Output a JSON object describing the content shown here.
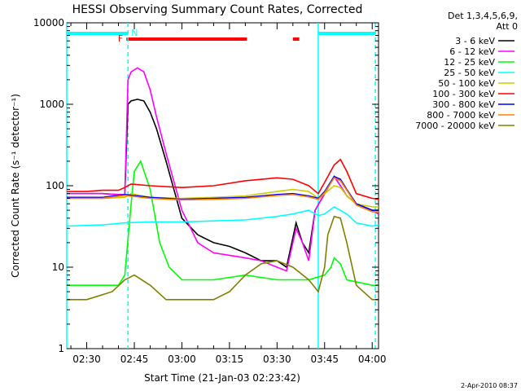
{
  "chart_data": {
    "type": "line",
    "title": "HESSI Observing Summary Count Rates, Corrected",
    "xlabel": "Start Time (21-Jan-03 02:23:42)",
    "ylabel": "Corrected Count Rate (s⁻¹ detector⁻¹)",
    "y_scale": "log",
    "ylim": [
      1,
      10000
    ],
    "xlim": [
      "02:23:42",
      "04:02:00"
    ],
    "x_ticks": [
      "02:30",
      "02:45",
      "03:00",
      "03:15",
      "03:30",
      "03:45",
      "04:00"
    ],
    "y_ticks": [
      "1",
      "10",
      "100",
      "1000",
      "10000"
    ],
    "legend_header": [
      "Det 1,3,4,5,6,9,",
      "Att 0"
    ],
    "legend_position": "top-right",
    "timestamp": "2-Apr-2010 08:37",
    "flags": [
      {
        "label": "F",
        "color": "#ff0000",
        "start": "02:42:30",
        "end": "03:20:30"
      },
      {
        "label": "",
        "color": "#ff0000",
        "start": "03:35:00",
        "end": "03:37:00"
      },
      {
        "label": "N",
        "color": "#00ffff",
        "start": "02:23:42",
        "end": "02:43:00"
      },
      {
        "label": "",
        "color": "#00ffff",
        "start": "03:43:00",
        "end": "04:01:00"
      }
    ],
    "markers": [
      {
        "time": "02:23:42",
        "color": "#00ffff",
        "style": "solid"
      },
      {
        "time": "02:43:00",
        "color": "#00ffff",
        "style": "dashed"
      },
      {
        "time": "03:43:00",
        "color": "#00ffff",
        "style": "solid"
      },
      {
        "time": "04:01:00",
        "color": "#00ffff",
        "style": "dashed"
      }
    ],
    "series": [
      {
        "name": "3 - 6 keV",
        "color": "#000000",
        "x": [
          "02:23:42",
          "02:30",
          "02:35",
          "02:40",
          "02:42",
          "02:43",
          "02:44",
          "02:46",
          "02:48",
          "02:50",
          "02:52",
          "02:55",
          "03:00",
          "03:05",
          "03:10",
          "03:15",
          "03:20",
          "03:25",
          "03:30",
          "03:33",
          "03:36",
          "03:38",
          "03:40",
          "03:42",
          "03:45",
          "03:48",
          "03:50",
          "03:52",
          "03:55",
          "04:00",
          "04:02"
        ],
        "values": [
          80,
          80,
          80,
          78,
          78,
          1000,
          1100,
          1150,
          1100,
          800,
          500,
          200,
          40,
          25,
          20,
          18,
          15,
          12,
          12,
          10,
          35,
          20,
          15,
          50,
          80,
          130,
          100,
          75,
          60,
          50,
          45
        ]
      },
      {
        "name": "6 - 12 keV",
        "color": "#ff00ff",
        "x": [
          "02:23:42",
          "02:30",
          "02:35",
          "02:40",
          "02:42",
          "02:43",
          "02:44",
          "02:46",
          "02:48",
          "02:50",
          "02:52",
          "02:55",
          "03:00",
          "03:05",
          "03:10",
          "03:15",
          "03:20",
          "03:25",
          "03:30",
          "03:33",
          "03:36",
          "03:38",
          "03:40",
          "03:42",
          "03:45",
          "03:48",
          "03:50",
          "03:52",
          "03:55",
          "04:00",
          "04:02"
        ],
        "values": [
          80,
          80,
          80,
          78,
          78,
          2000,
          2500,
          2800,
          2500,
          1500,
          700,
          250,
          50,
          20,
          15,
          14,
          13,
          12,
          10,
          9,
          30,
          20,
          12,
          50,
          80,
          130,
          100,
          75,
          60,
          50,
          45
        ]
      },
      {
        "name": "12 - 25 keV",
        "color": "#00ff00",
        "x": [
          "02:23:42",
          "02:30",
          "02:40",
          "02:42",
          "02:44",
          "02:45",
          "02:47",
          "02:50",
          "02:53",
          "02:56",
          "03:00",
          "03:10",
          "03:20",
          "03:30",
          "03:40",
          "03:45",
          "03:47",
          "03:48",
          "03:50",
          "03:52",
          "04:00",
          "04:02"
        ],
        "values": [
          6,
          6,
          6,
          8,
          60,
          150,
          200,
          90,
          20,
          10,
          7,
          7,
          8,
          7,
          7,
          8,
          10,
          13,
          11,
          7,
          6,
          6
        ]
      },
      {
        "name": "25 - 50 keV",
        "color": "#00ffff",
        "x": [
          "02:23:42",
          "02:35",
          "02:42",
          "02:50",
          "03:00",
          "03:10",
          "03:20",
          "03:30",
          "03:35",
          "03:40",
          "03:43",
          "03:45",
          "03:48",
          "03:52",
          "03:55",
          "04:00",
          "04:02"
        ],
        "values": [
          32,
          33,
          35,
          36,
          36,
          37,
          38,
          42,
          45,
          50,
          43,
          45,
          55,
          45,
          35,
          32,
          33
        ]
      },
      {
        "name": "50 - 100 keV",
        "color": "#cccc00",
        "x": [
          "02:23:42",
          "02:35",
          "02:42",
          "02:44",
          "02:50",
          "03:00",
          "03:10",
          "03:20",
          "03:30",
          "03:35",
          "03:40",
          "03:43",
          "03:45",
          "03:48",
          "03:50",
          "03:52",
          "03:55",
          "04:00",
          "04:02"
        ],
        "values": [
          70,
          70,
          72,
          80,
          72,
          70,
          72,
          75,
          85,
          90,
          85,
          70,
          80,
          100,
          95,
          75,
          60,
          55,
          55
        ]
      },
      {
        "name": "100 - 300 keV",
        "color": "#ff0000",
        "x": [
          "02:23:42",
          "02:30",
          "02:35",
          "02:40",
          "02:42",
          "02:44",
          "02:50",
          "03:00",
          "03:10",
          "03:20",
          "03:30",
          "03:35",
          "03:40",
          "03:43",
          "03:45",
          "03:48",
          "03:50",
          "03:52",
          "03:55",
          "04:00",
          "04:02"
        ],
        "values": [
          85,
          85,
          88,
          88,
          95,
          105,
          100,
          95,
          100,
          115,
          125,
          120,
          100,
          80,
          110,
          180,
          210,
          150,
          80,
          70,
          68
        ]
      },
      {
        "name": "300 - 800 keV",
        "color": "#0000ff",
        "x": [
          "02:23:42",
          "02:35",
          "02:42",
          "02:50",
          "03:00",
          "03:10",
          "03:20",
          "03:30",
          "03:35",
          "03:40",
          "03:43",
          "03:45",
          "03:48",
          "03:50",
          "03:52",
          "03:55",
          "04:00",
          "04:02"
        ],
        "values": [
          72,
          72,
          78,
          72,
          68,
          70,
          72,
          78,
          80,
          75,
          70,
          85,
          130,
          120,
          90,
          60,
          50,
          50
        ]
      },
      {
        "name": "800 - 7000 keV",
        "color": "#ff8000",
        "x": [
          "02:23:42",
          "02:35",
          "02:42",
          "02:50",
          "03:00",
          "03:10",
          "03:20",
          "03:30",
          "03:35",
          "03:40",
          "03:43",
          "03:45",
          "03:48",
          "03:50",
          "03:52",
          "03:55",
          "04:00",
          "04:02"
        ],
        "values": [
          70,
          70,
          76,
          70,
          67,
          68,
          70,
          76,
          78,
          73,
          68,
          82,
          125,
          115,
          88,
          58,
          48,
          48
        ]
      },
      {
        "name": "7000 - 20000 keV",
        "color": "#808000",
        "x": [
          "02:23:42",
          "02:30",
          "02:38",
          "02:42",
          "02:45",
          "02:50",
          "02:55",
          "03:00",
          "03:05",
          "03:10",
          "03:15",
          "03:20",
          "03:25",
          "03:30",
          "03:35",
          "03:40",
          "03:43",
          "03:45",
          "03:46",
          "03:48",
          "03:50",
          "03:52",
          "03:55",
          "04:00",
          "04:02"
        ],
        "values": [
          4,
          4,
          5,
          7,
          8,
          6,
          4,
          4,
          4,
          4,
          5,
          8,
          11,
          12,
          10,
          7,
          5,
          10,
          25,
          42,
          40,
          20,
          6,
          4,
          4
        ]
      }
    ]
  }
}
